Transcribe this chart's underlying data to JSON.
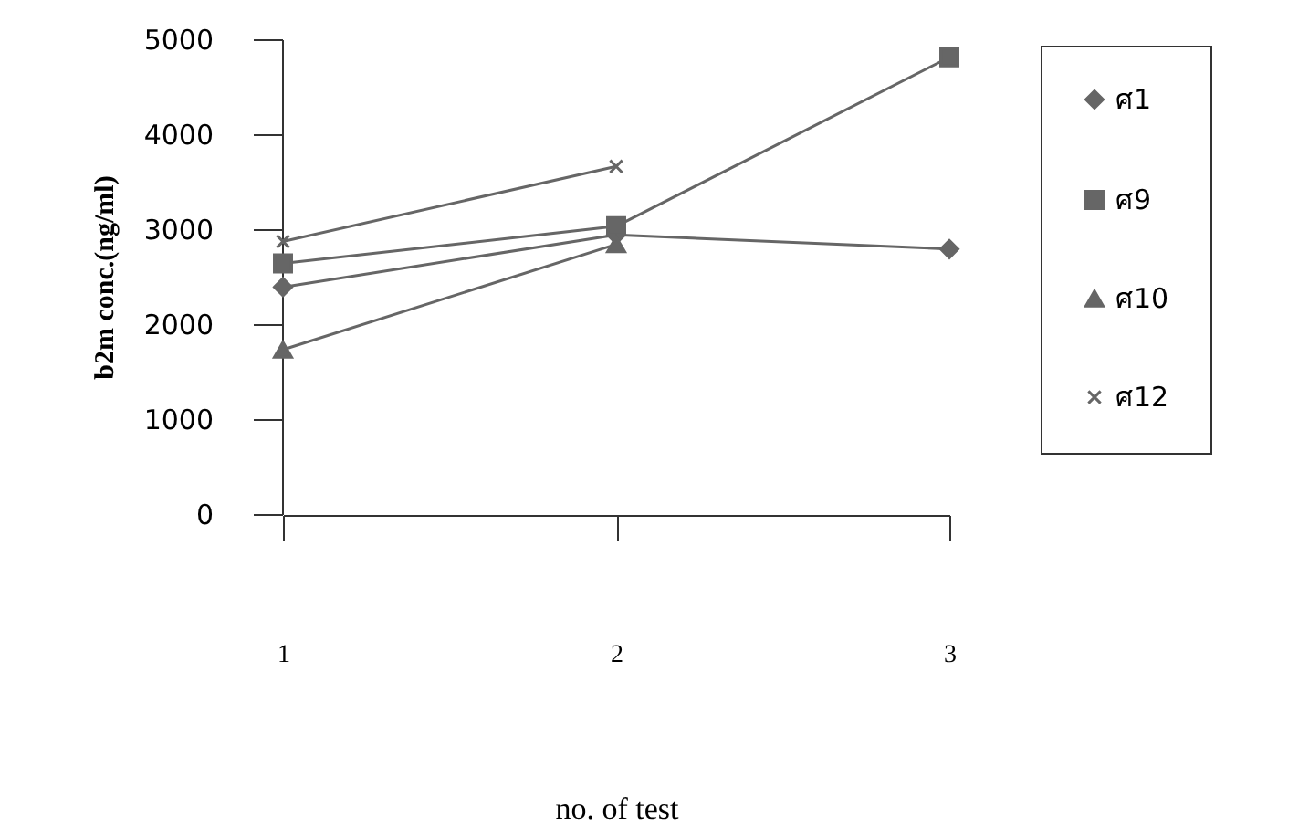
{
  "chart_data": {
    "type": "line",
    "xlabel": "no. of test",
    "ylabel": "b2m conc.(ng/ml)",
    "categories": [
      "1",
      "2",
      "3"
    ],
    "ylim": [
      0,
      5000
    ],
    "yticks": [
      0,
      1000,
      2000,
      3000,
      4000,
      5000
    ],
    "grid": false,
    "legend": "right",
    "series": [
      {
        "name": "ศ1",
        "color": "#666666",
        "marker": "diamond",
        "values": [
          2400,
          2950,
          2800
        ]
      },
      {
        "name": "ศ9",
        "color": "#666666",
        "marker": "square",
        "values": [
          2650,
          3040,
          4820
        ]
      },
      {
        "name": "ศ10",
        "color": "#666666",
        "marker": "triangle",
        "values": [
          1740,
          2850,
          null
        ]
      },
      {
        "name": "ศ12",
        "color": "#666666",
        "marker": "cross",
        "values": [
          2880,
          3670,
          null
        ]
      }
    ]
  }
}
